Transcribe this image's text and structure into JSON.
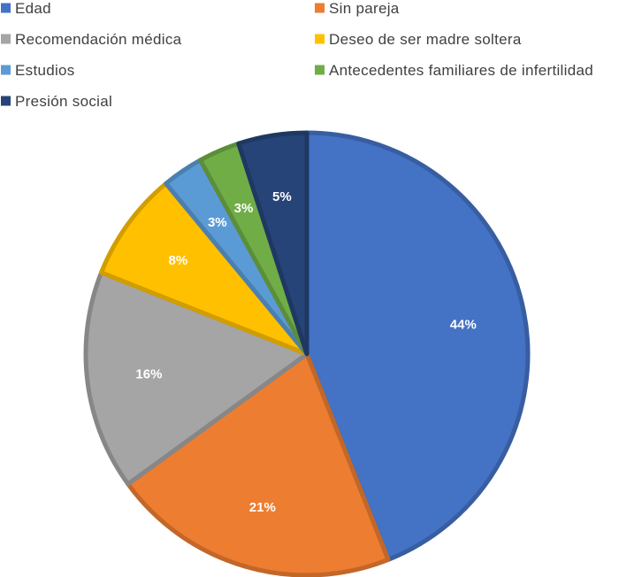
{
  "chart_data": {
    "type": "pie",
    "title": "",
    "legend_position": "top",
    "start_angle_deg": 0,
    "direction": "clockwise",
    "slices": [
      {
        "label": "Edad",
        "value": 44,
        "display": "44%",
        "color": "#4472C4"
      },
      {
        "label": "Sin pareja",
        "value": 21,
        "display": "21%",
        "color": "#ED7D31"
      },
      {
        "label": "Recomendación médica",
        "value": 16,
        "display": "16%",
        "color": "#A5A5A5"
      },
      {
        "label": "Deseo de ser madre soltera",
        "value": 8,
        "display": "8%",
        "color": "#FFC000"
      },
      {
        "label": "Estudios",
        "value": 3,
        "display": "3%",
        "color": "#5B9BD5"
      },
      {
        "label": "Antecedentes familiares de infertilidad",
        "value": 3,
        "display": "3%",
        "color": "#70AD47"
      },
      {
        "label": "Presión social",
        "value": 5,
        "display": "5%",
        "color": "#264478"
      }
    ]
  }
}
